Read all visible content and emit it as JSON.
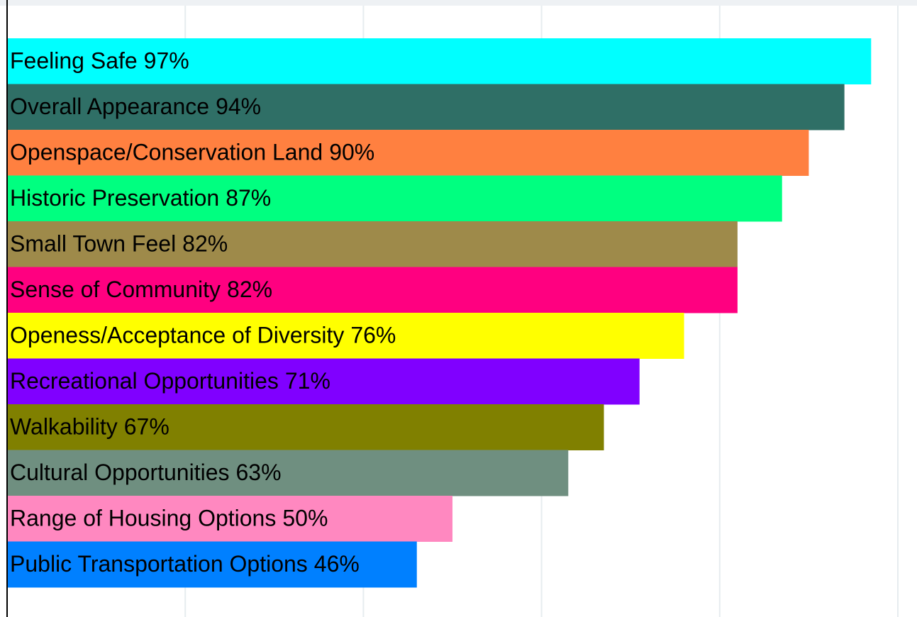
{
  "chart_data": {
    "type": "bar",
    "orientation": "horizontal",
    "categories": [
      "Feeling Safe",
      "Overall Appearance",
      "Openspace/Conservation Land",
      "Historic Preservation",
      "Small Town Feel",
      "Sense of Community",
      "Openess/Acceptance of Diversity",
      "Recreational Opportunities",
      "Walkability",
      "Cultural Opportunities",
      "Range of Housing Options",
      "Public Transportation Options"
    ],
    "values": [
      97,
      94,
      90,
      87,
      82,
      82,
      76,
      71,
      67,
      63,
      50,
      46
    ],
    "value_labels": [
      "97%",
      "94%",
      "90%",
      "87%",
      "82%",
      "82%",
      "76%",
      "71%",
      "67%",
      "63%",
      "50%",
      "46%"
    ],
    "colors": [
      "#00ffff",
      "#2f6f66",
      "#ff8040",
      "#00ff80",
      "#9e8a4a",
      "#ff0080",
      "#ffff00",
      "#8000ff",
      "#808000",
      "#6f8f80",
      "#ff88c0",
      "#0080ff"
    ],
    "xlim": [
      0,
      100
    ],
    "xticks": [
      20,
      40,
      60,
      80,
      100
    ],
    "grid": true
  }
}
